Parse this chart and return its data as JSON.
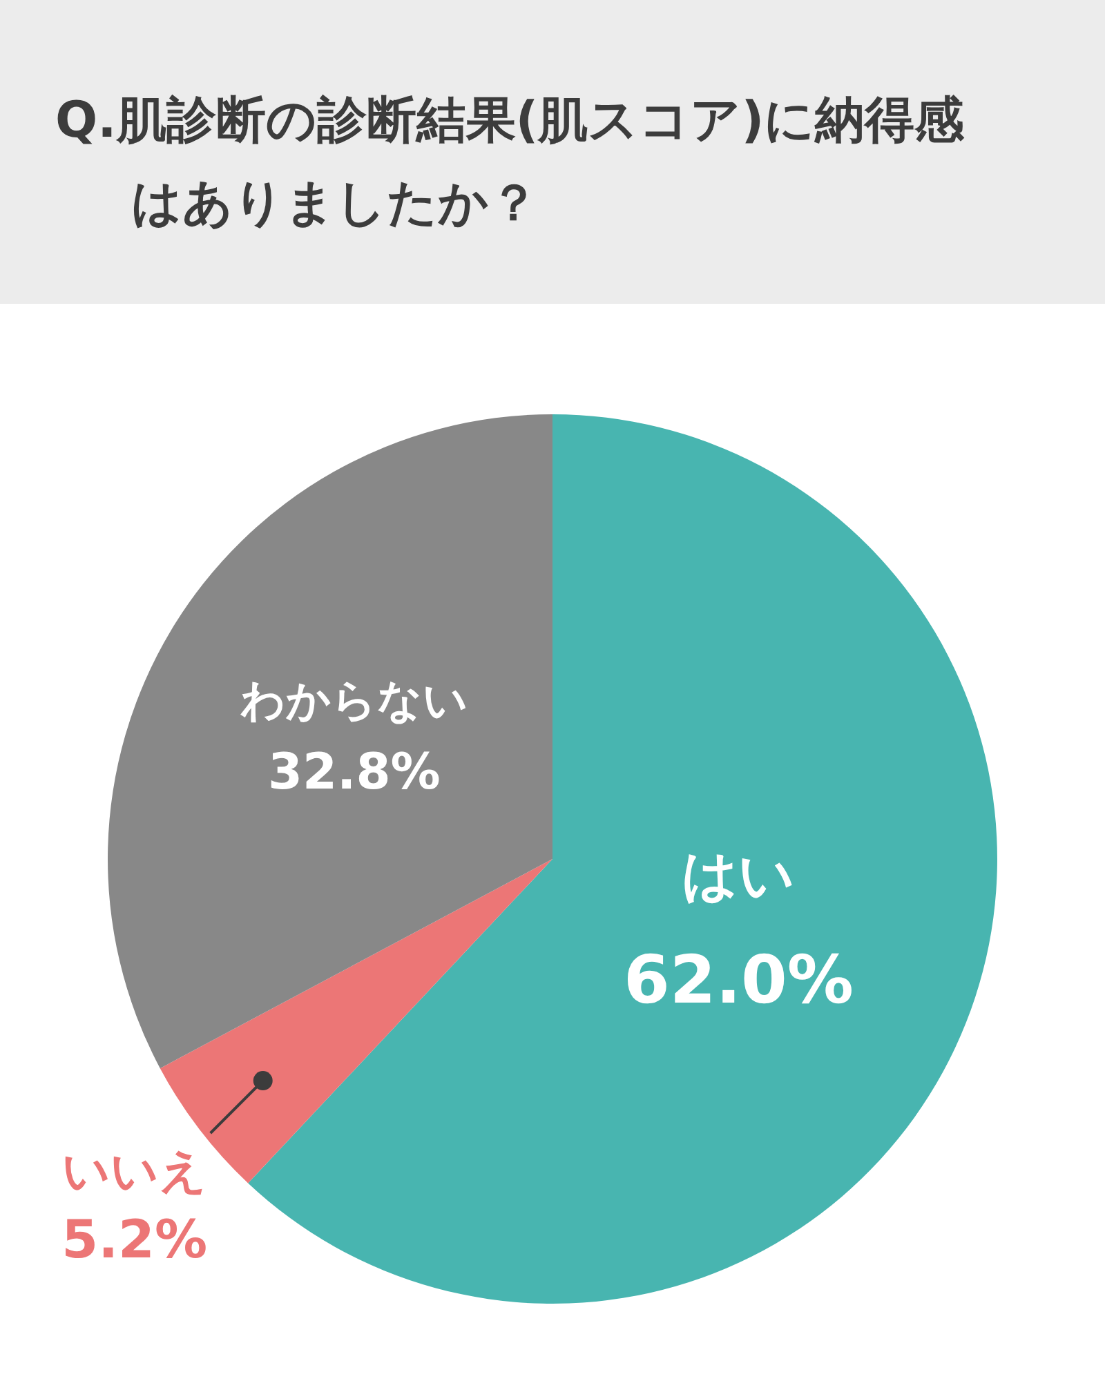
{
  "chart_data": {
    "type": "pie",
    "title": "Q.肌診断の診断結果(肌スコア)に納得感はありましたか？",
    "categories": [
      "はい",
      "いいえ",
      "わからない"
    ],
    "values": [
      62.0,
      5.2,
      32.8
    ],
    "colors": [
      "#48b5b0",
      "#ec7676",
      "#888888"
    ],
    "value_labels": [
      "62.0%",
      "5.2%",
      "32.8%"
    ],
    "legend": false
  }
}
